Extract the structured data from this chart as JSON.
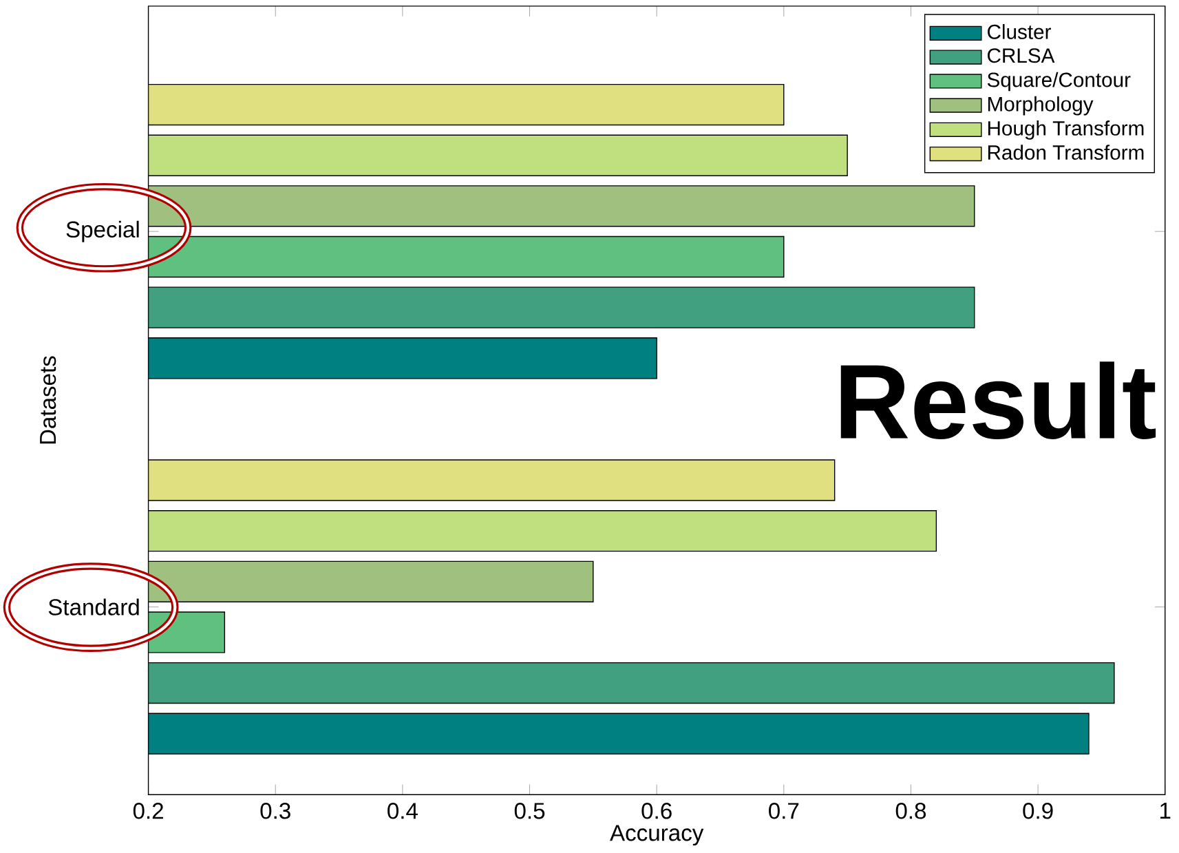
{
  "chart_data": {
    "type": "bar",
    "orientation": "horizontal",
    "xlabel": "Accuracy",
    "ylabel": "Datasets",
    "categories": [
      "Special",
      "Standard"
    ],
    "series": [
      {
        "name": "Cluster",
        "color": "#008080",
        "values": [
          0.6,
          0.94
        ]
      },
      {
        "name": "CRLSA",
        "color": "#40a080",
        "values": [
          0.85,
          0.96
        ]
      },
      {
        "name": "Square/Contour",
        "color": "#60c080",
        "values": [
          0.7,
          0.26
        ]
      },
      {
        "name": "Morphology",
        "color": "#a0c080",
        "values": [
          0.85,
          0.55
        ]
      },
      {
        "name": "Hough Transform",
        "color": "#c0e080",
        "values": [
          0.75,
          0.82
        ]
      },
      {
        "name": "Radon Transform",
        "color": "#e0e080",
        "values": [
          0.7,
          0.74
        ]
      }
    ],
    "xlim": [
      0.2,
      1
    ],
    "xticks": [
      0.2,
      0.3,
      0.4,
      0.5,
      0.6,
      0.7,
      0.8,
      0.9,
      1
    ],
    "legend": "top right",
    "annotations": [
      "Result"
    ]
  }
}
